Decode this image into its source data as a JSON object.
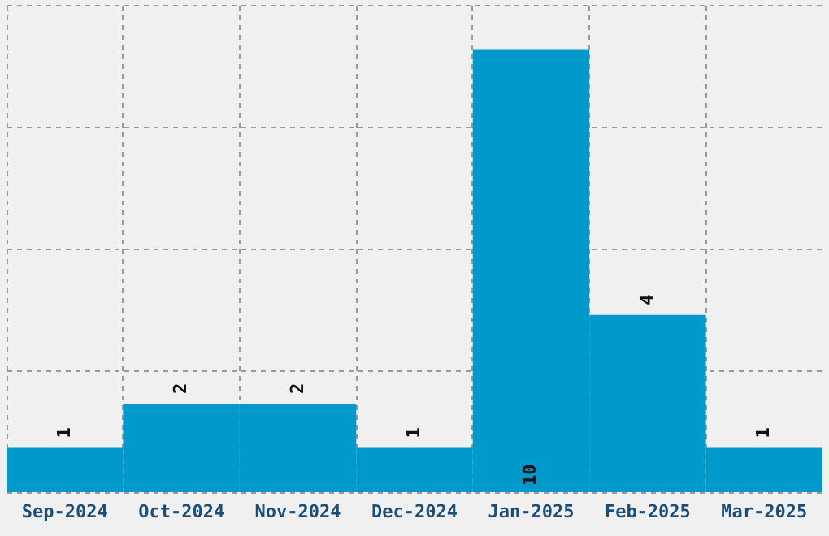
{
  "chart_data": {
    "type": "bar",
    "categories": [
      "Sep-2024",
      "Oct-2024",
      "Nov-2024",
      "Dec-2024",
      "Jan-2025",
      "Feb-2025",
      "Mar-2025"
    ],
    "values": [
      1,
      2,
      2,
      1,
      10,
      4,
      1
    ],
    "color": "#0099cc",
    "data_labels": true,
    "ylim": [
      0,
      11
    ],
    "yticks": [
      {
        "value": 0,
        "label": null
      },
      {
        "value": 2.75,
        "label": null
      },
      {
        "value": 5.5,
        "label": null
      },
      {
        "value": 8.25,
        "label": null
      },
      {
        "value": 11,
        "label": null
      }
    ],
    "grid": true,
    "line_style": "dashed"
  }
}
